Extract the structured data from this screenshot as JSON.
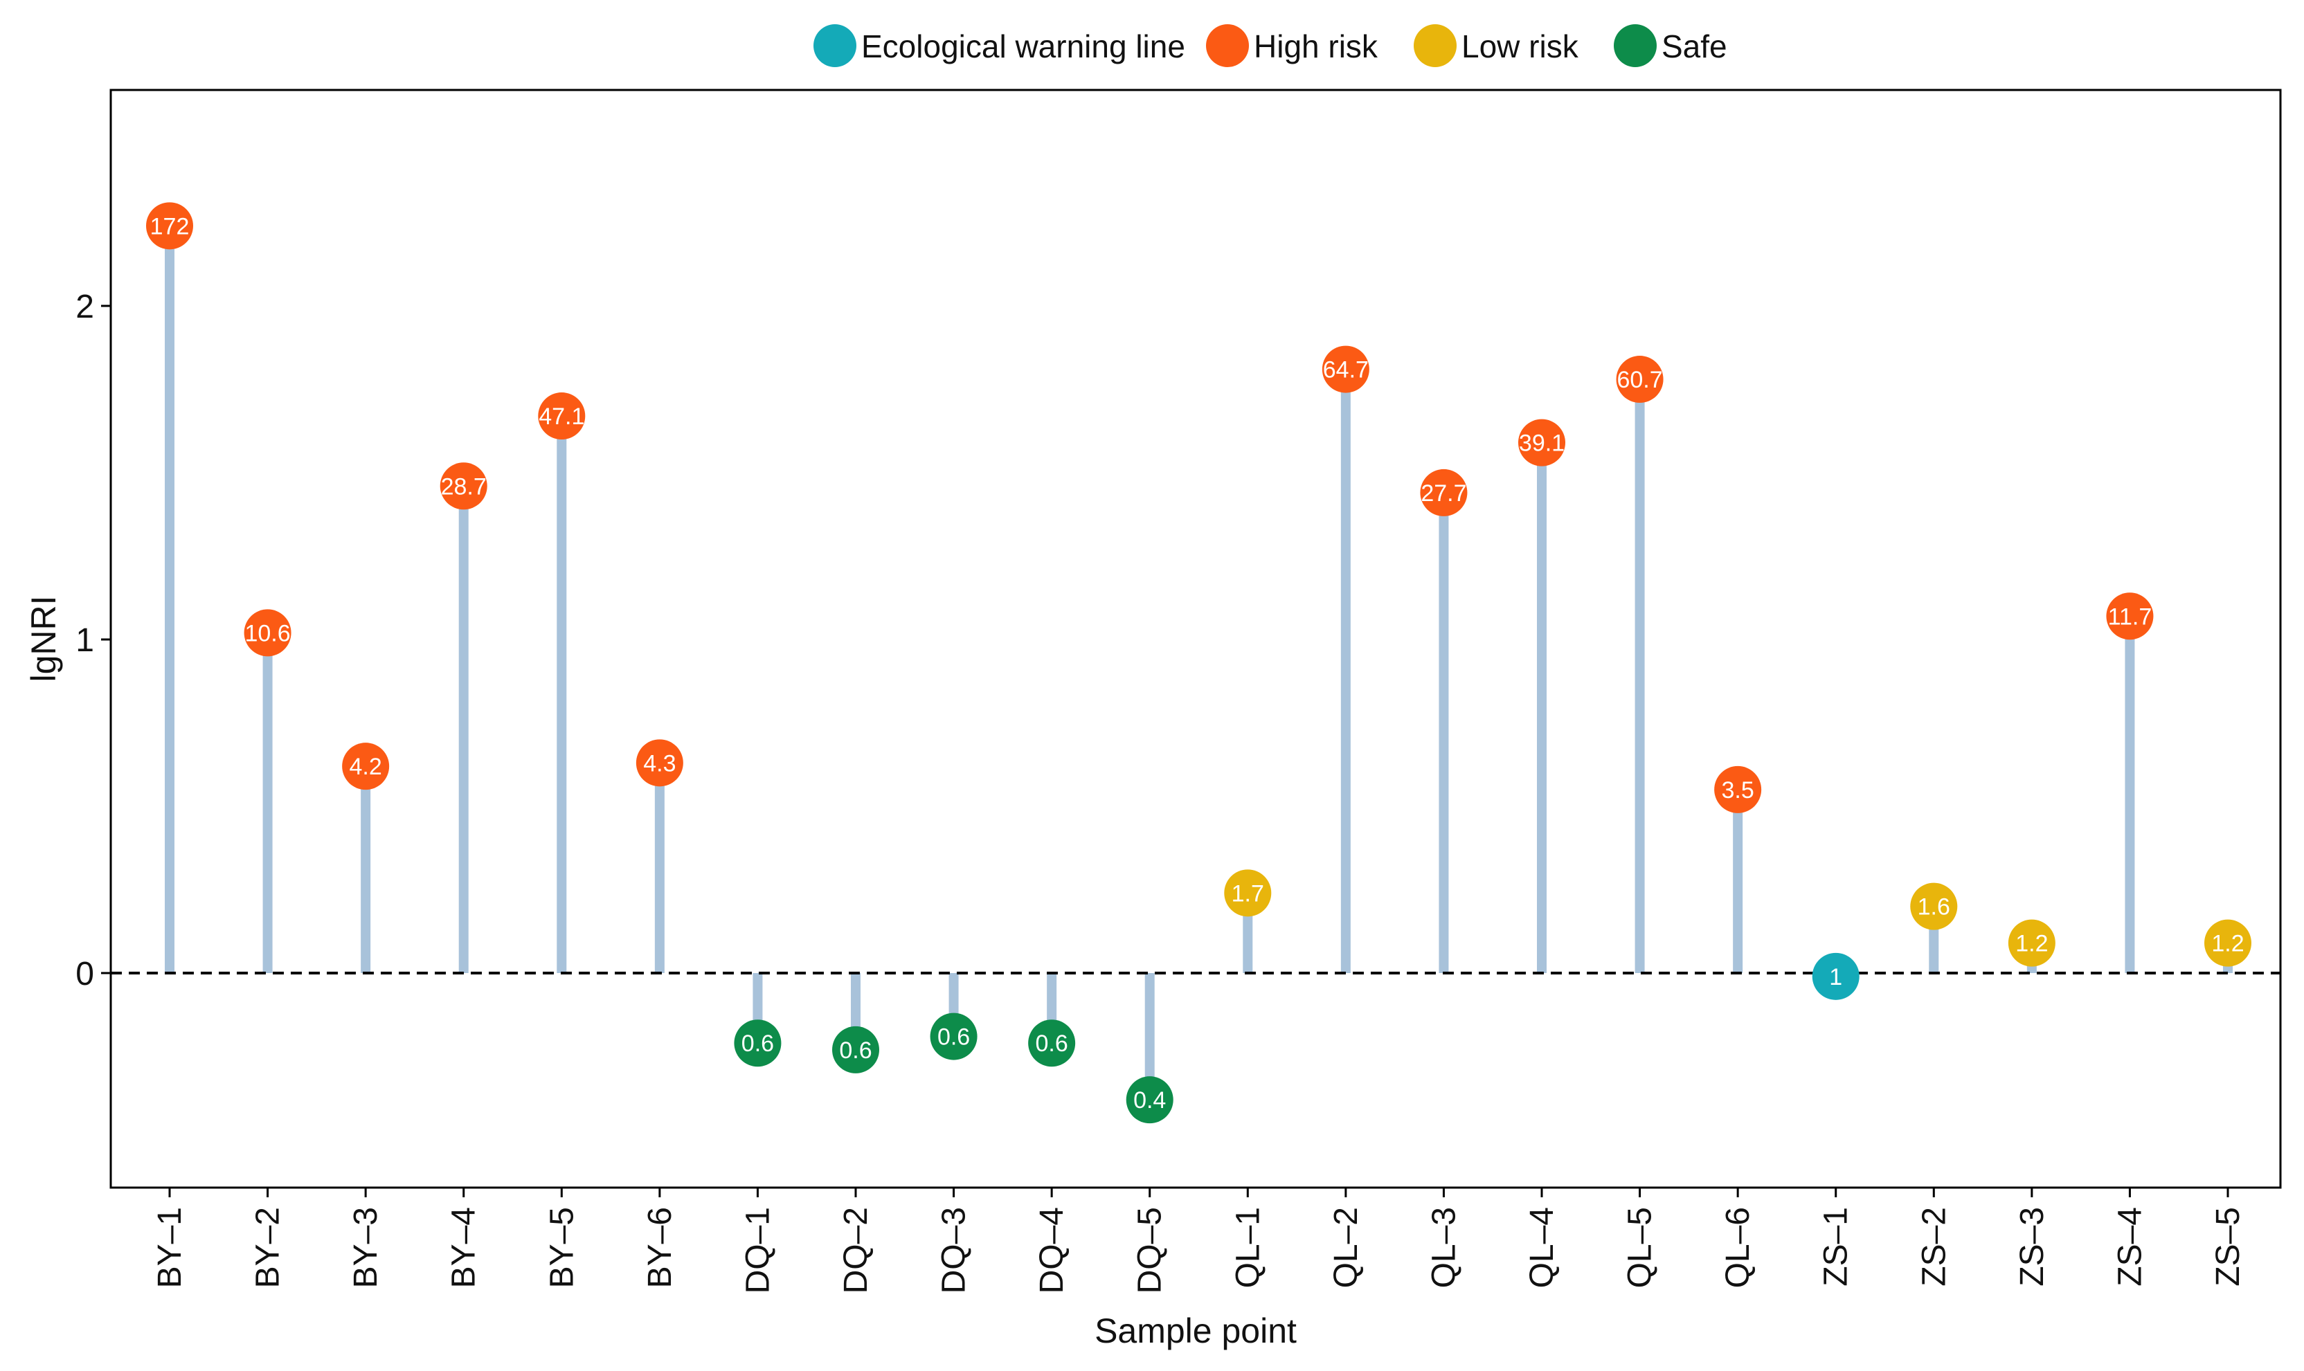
{
  "chart_data": {
    "type": "lollipop",
    "title": "",
    "xlabel": "Sample point",
    "ylabel": "lgNRI",
    "ylim": [
      -0.64,
      2.64
    ],
    "yticks": [
      0,
      1,
      2
    ],
    "baseline": 0,
    "legend": {
      "position": "top-center",
      "entries": [
        {
          "key": "warning",
          "label": "Ecological warning line",
          "color": "#14aab8"
        },
        {
          "key": "high",
          "label": "High risk",
          "color": "#fb5a14"
        },
        {
          "key": "low",
          "label": "Low risk",
          "color": "#e8b50c"
        },
        {
          "key": "safe",
          "label": "Safe",
          "color": "#0d8c4a"
        }
      ]
    },
    "stem_color": "#a8c2da",
    "points": [
      {
        "category": "BY–1",
        "value": 2.24,
        "label": "172",
        "risk": "high"
      },
      {
        "category": "BY–2",
        "value": 1.02,
        "label": "10.6",
        "risk": "high"
      },
      {
        "category": "BY–3",
        "value": 0.62,
        "label": "4.2",
        "risk": "high"
      },
      {
        "category": "BY–4",
        "value": 1.46,
        "label": "28.7",
        "risk": "high"
      },
      {
        "category": "BY–5",
        "value": 1.67,
        "label": "47.1",
        "risk": "high"
      },
      {
        "category": "BY–6",
        "value": 0.63,
        "label": "4.3",
        "risk": "high"
      },
      {
        "category": "DQ–1",
        "value": -0.21,
        "label": "0.6",
        "risk": "safe"
      },
      {
        "category": "DQ–2",
        "value": -0.23,
        "label": "0.6",
        "risk": "safe"
      },
      {
        "category": "DQ–3",
        "value": -0.19,
        "label": "0.6",
        "risk": "safe"
      },
      {
        "category": "DQ–4",
        "value": -0.21,
        "label": "0.6",
        "risk": "safe"
      },
      {
        "category": "DQ–5",
        "value": -0.38,
        "label": "0.4",
        "risk": "safe"
      },
      {
        "category": "QL–1",
        "value": 0.24,
        "label": "1.7",
        "risk": "low"
      },
      {
        "category": "QL–2",
        "value": 1.81,
        "label": "64.7",
        "risk": "high"
      },
      {
        "category": "QL–3",
        "value": 1.44,
        "label": "27.7",
        "risk": "high"
      },
      {
        "category": "QL–4",
        "value": 1.59,
        "label": "39.1",
        "risk": "high"
      },
      {
        "category": "QL–5",
        "value": 1.78,
        "label": "60.7",
        "risk": "high"
      },
      {
        "category": "QL–6",
        "value": 0.55,
        "label": "3.5",
        "risk": "high"
      },
      {
        "category": "ZS–1",
        "value": -0.01,
        "label": "1",
        "risk": "warning"
      },
      {
        "category": "ZS–2",
        "value": 0.2,
        "label": "1.6",
        "risk": "low"
      },
      {
        "category": "ZS–3",
        "value": 0.09,
        "label": "1.2",
        "risk": "low"
      },
      {
        "category": "ZS–4",
        "value": 1.07,
        "label": "11.7",
        "risk": "high"
      },
      {
        "category": "ZS–5",
        "value": 0.09,
        "label": "1.2",
        "risk": "low"
      }
    ]
  }
}
